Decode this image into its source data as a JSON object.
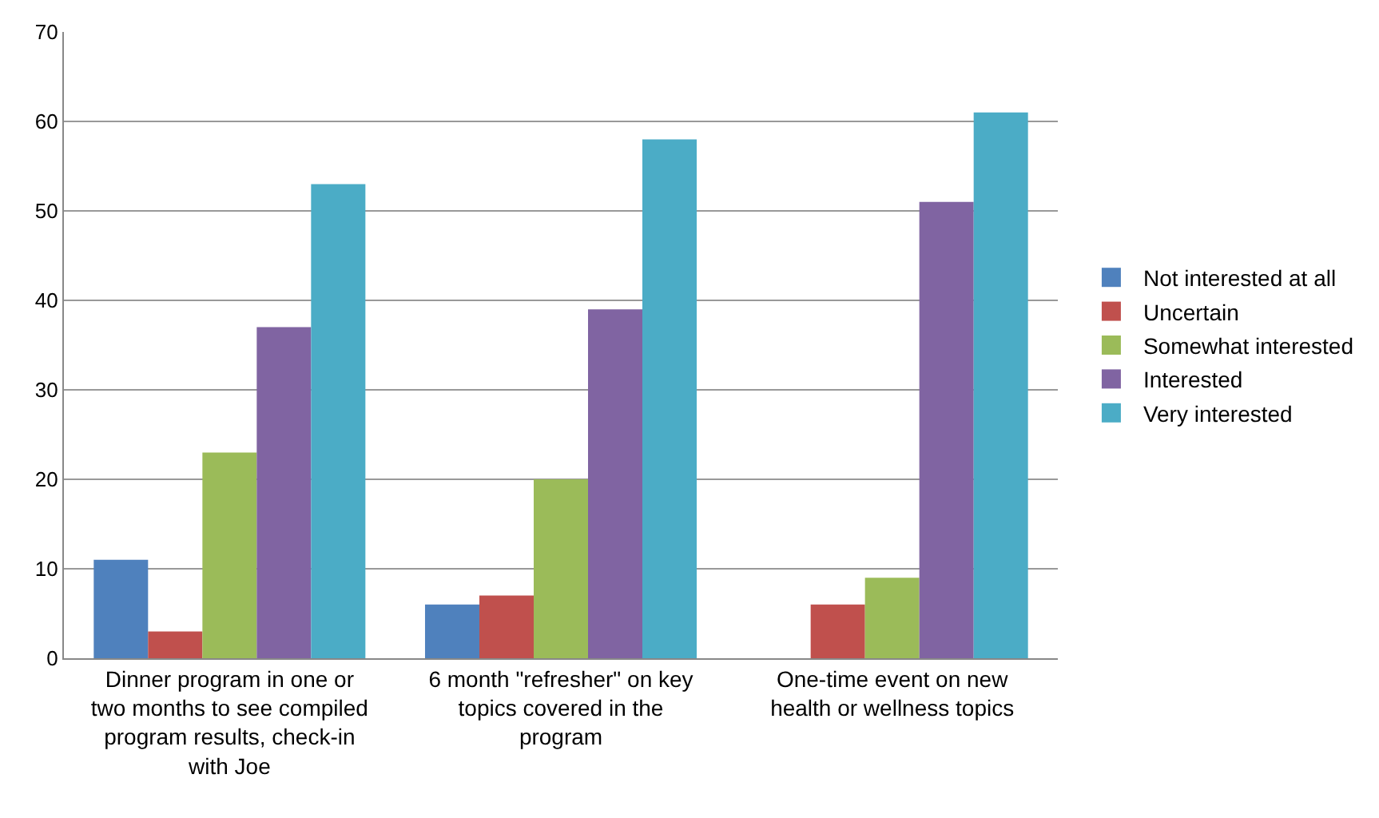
{
  "chart_data": {
    "type": "bar",
    "categories": [
      "Dinner program in one or two months to see compiled program results, check-in with Joe",
      "6 month \"refresher\" on key topics covered in the program",
      "One-time event on new health or wellness topics"
    ],
    "series": [
      {
        "name": "Not interested at all",
        "color": "#4f81bd",
        "values": [
          11,
          6,
          0
        ]
      },
      {
        "name": "Uncertain",
        "color": "#c0504d",
        "values": [
          3,
          7,
          6
        ]
      },
      {
        "name": "Somewhat interested",
        "color": "#9bbb59",
        "values": [
          23,
          20,
          9
        ]
      },
      {
        "name": "Interested",
        "color": "#8064a2",
        "values": [
          37,
          39,
          51
        ]
      },
      {
        "name": "Very interested",
        "color": "#4bacc6",
        "values": [
          53,
          58,
          61
        ]
      }
    ],
    "ylim": [
      0,
      70
    ],
    "yticks": [
      0,
      10,
      20,
      30,
      40,
      50,
      60,
      70
    ],
    "grid": "y",
    "legend": "right"
  }
}
